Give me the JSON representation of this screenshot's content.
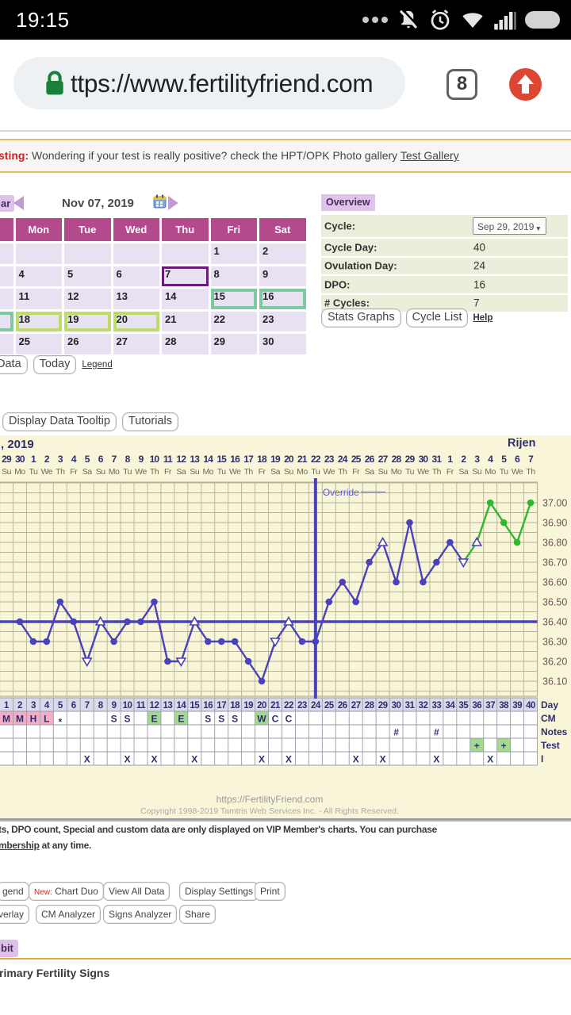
{
  "status_bar": {
    "time": "19:15"
  },
  "browser": {
    "url": "ttps://www.fertilityfriend.com",
    "tab_count": "8"
  },
  "notice": {
    "prefix": "sting:",
    "text": " Wondering if your test is really positive? check the HPT/OPK Photo gallery ",
    "link": "Test Gallery"
  },
  "calendar": {
    "nav_label_fragment": "ar",
    "month_label": "Nov 07, 2019",
    "day_headers": [
      "Sun",
      "Mon",
      "Tue",
      "Wed",
      "Thu",
      "Fri",
      "Sat"
    ],
    "weeks": [
      [
        "",
        "",
        "",
        "",
        "",
        "1",
        "2"
      ],
      [
        "3",
        "4",
        "5",
        "6",
        "7",
        "8",
        "9"
      ],
      [
        "10",
        "11",
        "12",
        "13",
        "14",
        "15",
        "16"
      ],
      [
        "17",
        "18",
        "19",
        "20",
        "21",
        "22",
        "23"
      ],
      [
        "24",
        "25",
        "26",
        "27",
        "28",
        "29",
        "30"
      ]
    ],
    "today_day": "7",
    "teal_days": [
      "15",
      "16",
      "17"
    ],
    "lime_days": [
      "18",
      "19",
      "20"
    ],
    "buttons": {
      "data": "Data",
      "today": "Today",
      "legend": "Legend"
    }
  },
  "overview": {
    "title": "Overview",
    "rows": [
      {
        "label": "Cycle:",
        "value": "Sep 29, 2019",
        "dropdown": true
      },
      {
        "label": "Cycle Day:",
        "value": "40"
      },
      {
        "label": "Ovulation Day:",
        "value": "24"
      },
      {
        "label": "DPO:",
        "value": "16"
      },
      {
        "label": "# Cycles:",
        "value": "7"
      }
    ],
    "buttons": [
      "Stats Graphs",
      "Cycle List"
    ],
    "help_link": "Help"
  },
  "chart_toolbar": [
    "Display Data Tooltip",
    "Tutorials"
  ],
  "chart_data": {
    "type": "line",
    "title_fragment": ", 2019",
    "owner_label": "Rijen",
    "x_dates": [
      29,
      30,
      1,
      2,
      3,
      4,
      5,
      6,
      7,
      8,
      9,
      10,
      11,
      12,
      13,
      14,
      15,
      16,
      17,
      18,
      19,
      20,
      21,
      22,
      23,
      24,
      25,
      26,
      27,
      28,
      29,
      30,
      31,
      1,
      2,
      3,
      4,
      5,
      6,
      7
    ],
    "x_weekdays": [
      "Su",
      "Mo",
      "Tu",
      "We",
      "Th",
      "Fr",
      "Sa",
      "Su",
      "Mo",
      "Tu",
      "We",
      "Th",
      "Fr",
      "Sa",
      "Su",
      "Mo",
      "Tu",
      "We",
      "Th",
      "Fr",
      "Sa",
      "Su",
      "Mo",
      "Tu",
      "We",
      "Th",
      "Fr",
      "Sa",
      "Su",
      "Mo",
      "Tu",
      "We",
      "Th",
      "Fr",
      "Sa",
      "Su",
      "Mo",
      "Tu",
      "We",
      "Th"
    ],
    "cycle_days": [
      1,
      2,
      3,
      4,
      5,
      6,
      7,
      8,
      9,
      10,
      11,
      12,
      13,
      14,
      15,
      16,
      17,
      18,
      19,
      20,
      21,
      22,
      23,
      24,
      25,
      26,
      27,
      28,
      29,
      30,
      31,
      32,
      33,
      34,
      35,
      36,
      37,
      38,
      39,
      40
    ],
    "temps_celsius": [
      null,
      36.4,
      36.3,
      36.3,
      36.5,
      36.4,
      36.2,
      36.4,
      36.3,
      36.4,
      36.4,
      36.5,
      36.2,
      36.2,
      36.4,
      36.3,
      36.3,
      36.3,
      36.2,
      36.1,
      36.3,
      36.4,
      36.3,
      36.3,
      36.5,
      36.6,
      36.5,
      36.7,
      36.8,
      36.6,
      36.9,
      36.6,
      36.7,
      36.8,
      36.7,
      36.8,
      37.0,
      36.9,
      36.8,
      37.0
    ],
    "open_triangle_down_days": [
      7,
      14,
      21,
      35
    ],
    "open_triangle_up_days": [
      8,
      15,
      22,
      29,
      36
    ],
    "green_marker_days": [
      37,
      38,
      39,
      40
    ],
    "green_segments_from_day": 35,
    "coverline_temp": 36.4,
    "override_day": 24,
    "override_label": "Override",
    "y_ticks": [
      "37.00",
      "36.90",
      "36.80",
      "36.70",
      "36.60",
      "36.50",
      "36.40",
      "36.30",
      "36.20",
      "36.10"
    ],
    "row_labels": [
      "Day",
      "CM",
      "Notes",
      "Test",
      "I"
    ],
    "cm_values": {
      "1": "M",
      "2": "M",
      "3": "H",
      "4": "L",
      "5": "*",
      "9": "S",
      "10": "S",
      "12": "E",
      "14": "E",
      "16": "S",
      "17": "S",
      "18": "S",
      "20": "W",
      "21": "C",
      "22": "C"
    },
    "cm_pink_days": [
      1,
      2,
      3,
      4
    ],
    "cm_green_days": [
      12,
      14,
      20
    ],
    "notes_days": [
      30,
      33
    ],
    "notes_symbol": "#",
    "test_days": [
      36,
      38
    ],
    "test_symbol": "+",
    "intercourse_days": [
      7,
      10,
      12,
      15,
      20,
      22,
      27,
      29,
      33,
      37
    ],
    "intercourse_symbol": "X",
    "footer_line1": "https://FertilityFriend.com",
    "footer_line2": "Copyright 1998-2019 Tamtris Web Services Inc. - All Rights Reserved.",
    "colors": {
      "line": "#4a42bb",
      "green": "#2db82d",
      "grid": "#b3b396",
      "navy": "#2e2e6e",
      "weekday": "#6b6b58",
      "temp_label": "#6e5454",
      "day_row_bg": "#dadaea",
      "cm_pink": "#f3aec6",
      "cm_green": "#a2db8e",
      "override": "#5b57c8"
    }
  },
  "vip_note": {
    "line1": "ts, DPO count, Special and custom data are only displayed on VIP Member's charts. You can purchase",
    "link": "mbership",
    "line2_rest": " at any time."
  },
  "bottom_toolbar": {
    "row1": [
      {
        "label": "gend",
        "x": -4
      },
      {
        "prefix": "New:",
        "label": " Chart Duo",
        "x": 36
      },
      {
        "label": "View All Data",
        "x": 130
      },
      {
        "label": "Display Settings",
        "x": 226
      },
      {
        "label": "Print",
        "x": 321
      }
    ],
    "row2": [
      {
        "label": "verlay",
        "x": -9
      },
      {
        "label": "CM Analyzer",
        "x": 45
      },
      {
        "label": "Signs Analyzer",
        "x": 130
      },
      {
        "label": "Share",
        "x": 226
      }
    ]
  },
  "fitbit_fragment": "bit",
  "section_heading": "rimary Fertility Signs"
}
